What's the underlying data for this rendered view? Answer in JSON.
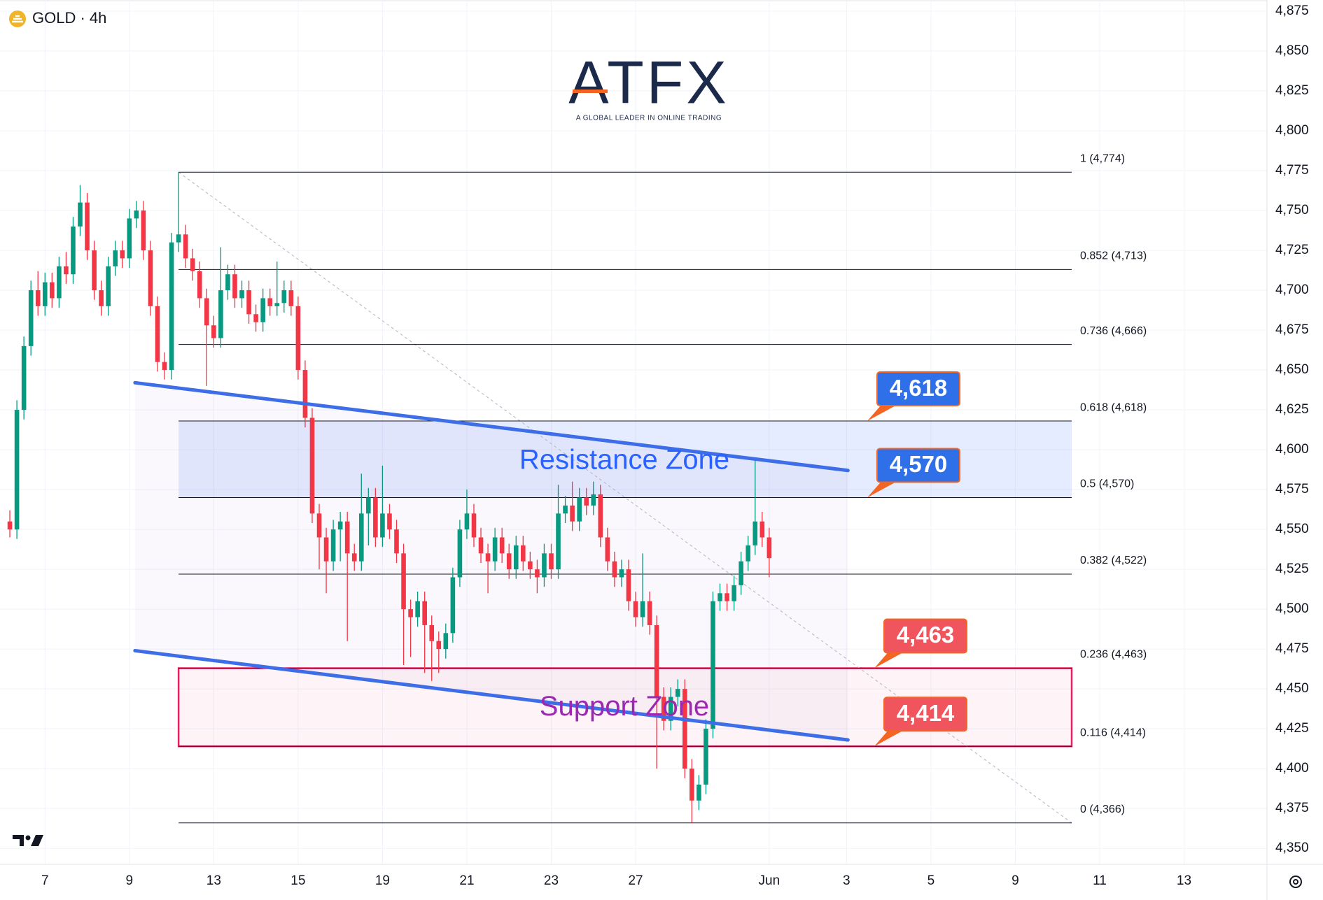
{
  "chart_data": {
    "type": "candlestick",
    "symbol": "GOLD · 4h",
    "logo": {
      "name": "ATFX",
      "tagline": "A GLOBAL LEADER IN ONLINE TRADING"
    },
    "up_color": "#089981",
    "down_color": "#f23645",
    "x": [
      0,
      1,
      2,
      3,
      4,
      5,
      6,
      7,
      8,
      9,
      10,
      11,
      12,
      13,
      14,
      15,
      16,
      17,
      18,
      19,
      20,
      21,
      22,
      23,
      24,
      25,
      26,
      27,
      28,
      29,
      30,
      31,
      32,
      33,
      34,
      35,
      36,
      37,
      38,
      39,
      40,
      41,
      42,
      43,
      44,
      45,
      46,
      47,
      48,
      49,
      50,
      51,
      52,
      53,
      54,
      55,
      56,
      57,
      58,
      59,
      60,
      61,
      62,
      63,
      64,
      65,
      66,
      67,
      68,
      69,
      70,
      71,
      72,
      73,
      74,
      75,
      76,
      77,
      78,
      79,
      80,
      81,
      82,
      83,
      84,
      85,
      86,
      87,
      88,
      89,
      90,
      91,
      92,
      93,
      94,
      95,
      96,
      97,
      98,
      99,
      100,
      101,
      102,
      103,
      104,
      105,
      106,
      107,
      108
    ],
    "ohlc": [
      [
        4555,
        4562,
        4545,
        4550
      ],
      [
        4550,
        4631,
        4544,
        4625
      ],
      [
        4625,
        4671,
        4619,
        4665
      ],
      [
        4665,
        4706,
        4659,
        4700
      ],
      [
        4700,
        4712,
        4684,
        4690
      ],
      [
        4690,
        4711,
        4684,
        4705
      ],
      [
        4705,
        4711,
        4689,
        4695
      ],
      [
        4695,
        4721,
        4689,
        4715
      ],
      [
        4715,
        4724,
        4704,
        4710
      ],
      [
        4710,
        4746,
        4704,
        4740
      ],
      [
        4740,
        4766,
        4734,
        4755
      ],
      [
        4755,
        4761,
        4719,
        4725
      ],
      [
        4725,
        4731,
        4694,
        4700
      ],
      [
        4700,
        4706,
        4684,
        4690
      ],
      [
        4690,
        4721,
        4684,
        4715
      ],
      [
        4715,
        4731,
        4709,
        4725
      ],
      [
        4725,
        4731,
        4714,
        4720
      ],
      [
        4720,
        4751,
        4714,
        4745
      ],
      [
        4745,
        4756,
        4739,
        4750
      ],
      [
        4750,
        4756,
        4719,
        4725
      ],
      [
        4725,
        4731,
        4684,
        4690
      ],
      [
        4690,
        4696,
        4649,
        4655
      ],
      [
        4655,
        4661,
        4644,
        4650
      ],
      [
        4650,
        4736,
        4644,
        4730
      ],
      [
        4730,
        4774,
        4724,
        4735
      ],
      [
        4735,
        4741,
        4714,
        4720
      ],
      [
        4720,
        4726,
        4706,
        4712
      ],
      [
        4712,
        4718,
        4689,
        4695
      ],
      [
        4695,
        4701,
        4640,
        4678
      ],
      [
        4678,
        4684,
        4664,
        4670
      ],
      [
        4670,
        4727,
        4664,
        4700
      ],
      [
        4700,
        4716,
        4694,
        4710
      ],
      [
        4710,
        4716,
        4689,
        4695
      ],
      [
        4695,
        4706,
        4689,
        4700
      ],
      [
        4700,
        4706,
        4679,
        4685
      ],
      [
        4685,
        4691,
        4674,
        4680
      ],
      [
        4680,
        4701,
        4674,
        4695
      ],
      [
        4695,
        4701,
        4684,
        4690
      ],
      [
        4690,
        4718,
        4684,
        4692
      ],
      [
        4692,
        4706,
        4686,
        4700
      ],
      [
        4700,
        4706,
        4684,
        4690
      ],
      [
        4690,
        4696,
        4644,
        4650
      ],
      [
        4650,
        4656,
        4614,
        4620
      ],
      [
        4620,
        4626,
        4554,
        4560
      ],
      [
        4560,
        4566,
        4525,
        4545
      ],
      [
        4545,
        4551,
        4510,
        4530
      ],
      [
        4530,
        4556,
        4524,
        4550
      ],
      [
        4550,
        4561,
        4530,
        4555
      ],
      [
        4555,
        4561,
        4480,
        4535
      ],
      [
        4535,
        4541,
        4524,
        4530
      ],
      [
        4530,
        4585,
        4524,
        4560
      ],
      [
        4560,
        4576,
        4540,
        4570
      ],
      [
        4570,
        4576,
        4539,
        4545
      ],
      [
        4545,
        4590,
        4539,
        4560
      ],
      [
        4560,
        4566,
        4544,
        4550
      ],
      [
        4550,
        4556,
        4529,
        4535
      ],
      [
        4535,
        4541,
        4465,
        4500
      ],
      [
        4500,
        4506,
        4470,
        4495
      ],
      [
        4495,
        4511,
        4489,
        4505
      ],
      [
        4505,
        4511,
        4460,
        4490
      ],
      [
        4490,
        4496,
        4455,
        4480
      ],
      [
        4480,
        4486,
        4460,
        4475
      ],
      [
        4475,
        4491,
        4469,
        4485
      ],
      [
        4485,
        4526,
        4479,
        4520
      ],
      [
        4520,
        4556,
        4514,
        4550
      ],
      [
        4550,
        4575,
        4544,
        4560
      ],
      [
        4560,
        4566,
        4539,
        4545
      ],
      [
        4545,
        4551,
        4529,
        4535
      ],
      [
        4535,
        4541,
        4510,
        4530
      ],
      [
        4530,
        4551,
        4524,
        4545
      ],
      [
        4545,
        4551,
        4529,
        4535
      ],
      [
        4535,
        4541,
        4519,
        4525
      ],
      [
        4525,
        4546,
        4519,
        4540
      ],
      [
        4540,
        4546,
        4524,
        4530
      ],
      [
        4530,
        4536,
        4519,
        4525
      ],
      [
        4525,
        4531,
        4510,
        4520
      ],
      [
        4520,
        4541,
        4514,
        4535
      ],
      [
        4535,
        4541,
        4519,
        4525
      ],
      [
        4525,
        4578,
        4519,
        4560
      ],
      [
        4560,
        4571,
        4554,
        4565
      ],
      [
        4565,
        4580,
        4549,
        4555
      ],
      [
        4555,
        4576,
        4549,
        4570
      ],
      [
        4570,
        4576,
        4559,
        4565
      ],
      [
        4565,
        4580,
        4559,
        4572
      ],
      [
        4572,
        4578,
        4539,
        4545
      ],
      [
        4545,
        4551,
        4524,
        4530
      ],
      [
        4530,
        4536,
        4514,
        4520
      ],
      [
        4520,
        4531,
        4514,
        4525
      ],
      [
        4525,
        4531,
        4499,
        4505
      ],
      [
        4505,
        4511,
        4489,
        4495
      ],
      [
        4495,
        4535,
        4489,
        4505
      ],
      [
        4505,
        4511,
        4484,
        4490
      ],
      [
        4490,
        4496,
        4400,
        4445
      ],
      [
        4445,
        4451,
        4424,
        4430
      ],
      [
        4430,
        4451,
        4424,
        4445
      ],
      [
        4445,
        4456,
        4439,
        4450
      ],
      [
        4450,
        4456,
        4394,
        4400
      ],
      [
        4400,
        4406,
        4366,
        4380
      ],
      [
        4380,
        4396,
        4374,
        4390
      ],
      [
        4390,
        4431,
        4384,
        4425
      ],
      [
        4425,
        4511,
        4419,
        4505
      ],
      [
        4505,
        4516,
        4499,
        4510
      ],
      [
        4510,
        4516,
        4499,
        4505
      ],
      [
        4505,
        4521,
        4499,
        4515
      ],
      [
        4515,
        4536,
        4509,
        4530
      ],
      [
        4530,
        4546,
        4524,
        4540
      ],
      [
        4540,
        4593,
        4534,
        4555
      ],
      [
        4555,
        4561,
        4539,
        4545
      ],
      [
        4545,
        4551,
        4520,
        4532
      ]
    ],
    "xlim": [
      -1.4,
      178.8
    ],
    "xticks": [
      {
        "value": 5,
        "label": "7"
      },
      {
        "value": 17,
        "label": "9"
      },
      {
        "value": 29,
        "label": "13"
      },
      {
        "value": 41,
        "label": "15"
      },
      {
        "value": 53,
        "label": "19"
      },
      {
        "value": 65,
        "label": "21"
      },
      {
        "value": 77,
        "label": "23"
      },
      {
        "value": 89,
        "label": "27"
      },
      {
        "value": 108,
        "label": "Jun"
      },
      {
        "value": 119,
        "label": "3"
      },
      {
        "value": 131,
        "label": "5"
      },
      {
        "value": 143,
        "label": "9"
      },
      {
        "value": 155,
        "label": "11"
      },
      {
        "value": 167,
        "label": "13"
      }
    ],
    "ylim": [
      4340,
      4882
    ],
    "yticks": [
      {
        "value": 4350,
        "label": "4,350"
      },
      {
        "value": 4375,
        "label": "4,375"
      },
      {
        "value": 4400,
        "label": "4,400"
      },
      {
        "value": 4425,
        "label": "4,425"
      },
      {
        "value": 4450,
        "label": "4,450"
      },
      {
        "value": 4475,
        "label": "4,475"
      },
      {
        "value": 4500,
        "label": "4,500"
      },
      {
        "value": 4525,
        "label": "4,525"
      },
      {
        "value": 4550,
        "label": "4,550"
      },
      {
        "value": 4575,
        "label": "4,575"
      },
      {
        "value": 4600,
        "label": "4,600"
      },
      {
        "value": 4625,
        "label": "4,625"
      },
      {
        "value": 4650,
        "label": "4,650"
      },
      {
        "value": 4675,
        "label": "4,675"
      },
      {
        "value": 4700,
        "label": "4,700"
      },
      {
        "value": 4725,
        "label": "4,725"
      },
      {
        "value": 4750,
        "label": "4,750"
      },
      {
        "value": 4775,
        "label": "4,775"
      },
      {
        "value": 4800,
        "label": "4,800"
      },
      {
        "value": 4825,
        "label": "4,825"
      },
      {
        "value": 4850,
        "label": "4,850"
      },
      {
        "value": 4875,
        "label": "4,875"
      }
    ],
    "fib_levels": [
      {
        "value": 4774,
        "label": "1 (4,774)"
      },
      {
        "value": 4713,
        "label": "0.852 (4,713)"
      },
      {
        "value": 4666,
        "label": "0.736 (4,666)"
      },
      {
        "value": 4618,
        "label": "0.618 (4,618)"
      },
      {
        "value": 4570,
        "label": "0.5 (4,570)"
      },
      {
        "value": 4522,
        "label": "0.382 (4,522)"
      },
      {
        "value": 4463,
        "label": "0.236 (4,463)"
      },
      {
        "value": 4414,
        "label": "0.116 (4,414)"
      },
      {
        "value": 4366,
        "label": "0 (4,366)"
      }
    ],
    "zones": [
      {
        "name": "Resistance Zone",
        "low": 4570,
        "high": 4618,
        "color": "#2962ff"
      },
      {
        "name": "Support Zone",
        "low": 4414,
        "high": 4463,
        "color": "#e91e63"
      }
    ],
    "price_badges": [
      {
        "value": 4618,
        "label": "4,618",
        "color": "#2f6fe8"
      },
      {
        "value": 4570,
        "label": "4,570",
        "color": "#2f6fe8"
      },
      {
        "value": 4463,
        "label": "4,463",
        "color": "#f0545c"
      },
      {
        "value": 4414,
        "label": "4,414",
        "color": "#f0545c"
      }
    ],
    "trendlines": [
      {
        "x": [
          17.8,
          119.2
        ],
        "y": [
          4642,
          4587
        ],
        "color": "#3d6ee8"
      },
      {
        "x": [
          17.8,
          119.2
        ],
        "y": [
          4474,
          4418
        ],
        "color": "#3d6ee8"
      }
    ]
  }
}
